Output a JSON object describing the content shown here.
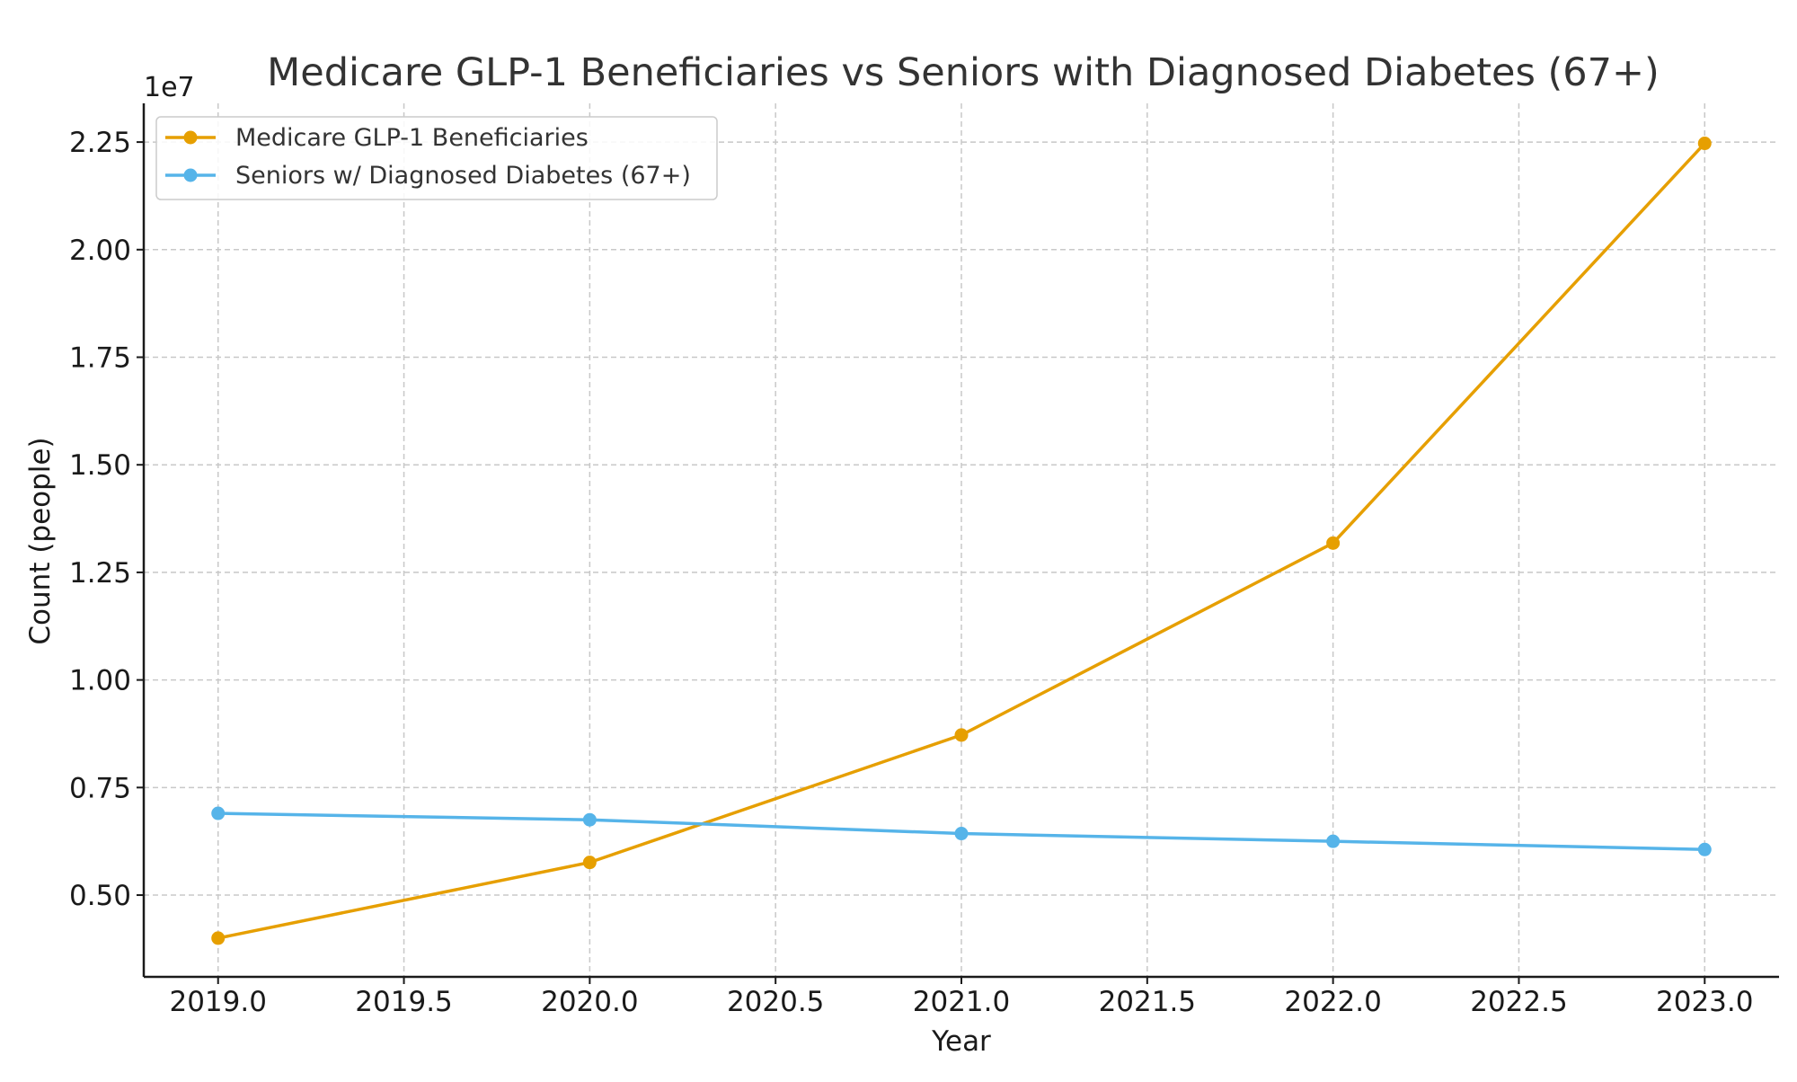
{
  "chart_data": {
    "type": "line",
    "title": "Medicare GLP-1 Beneficiaries vs Seniors with Diagnosed Diabetes (67+)",
    "xlabel": "Year",
    "ylabel": "Count (people)",
    "y_offset_label": "1e7",
    "y_scale_factor": 10000000,
    "x": [
      2019,
      2020,
      2021,
      2022,
      2023
    ],
    "xlim": [
      2018.8,
      2023.2
    ],
    "ylim": [
      3100000,
      23400000
    ],
    "x_ticks": [
      2019.0,
      2019.5,
      2020.0,
      2020.5,
      2021.0,
      2021.5,
      2022.0,
      2022.5,
      2023.0
    ],
    "x_tick_labels": [
      "2019.0",
      "2019.5",
      "2020.0",
      "2020.5",
      "2021.0",
      "2021.5",
      "2022.0",
      "2022.5",
      "2023.0"
    ],
    "y_ticks": [
      5000000,
      7500000,
      10000000,
      12500000,
      15000000,
      17500000,
      20000000,
      22500000
    ],
    "y_tick_labels": [
      "0.50",
      "0.75",
      "1.00",
      "1.25",
      "1.50",
      "1.75",
      "2.00",
      "2.25"
    ],
    "grid": true,
    "legend_position": "top-left",
    "series": [
      {
        "name": "Medicare GLP-1 Beneficiaries",
        "color": "#E69F00",
        "values": [
          4000000,
          5760000,
          8720000,
          13180000,
          22470000
        ]
      },
      {
        "name": "Seniors w/ Diagnosed Diabetes (67+)",
        "color": "#56B4E9",
        "values": [
          6900000,
          6750000,
          6430000,
          6250000,
          6060000
        ]
      }
    ]
  }
}
